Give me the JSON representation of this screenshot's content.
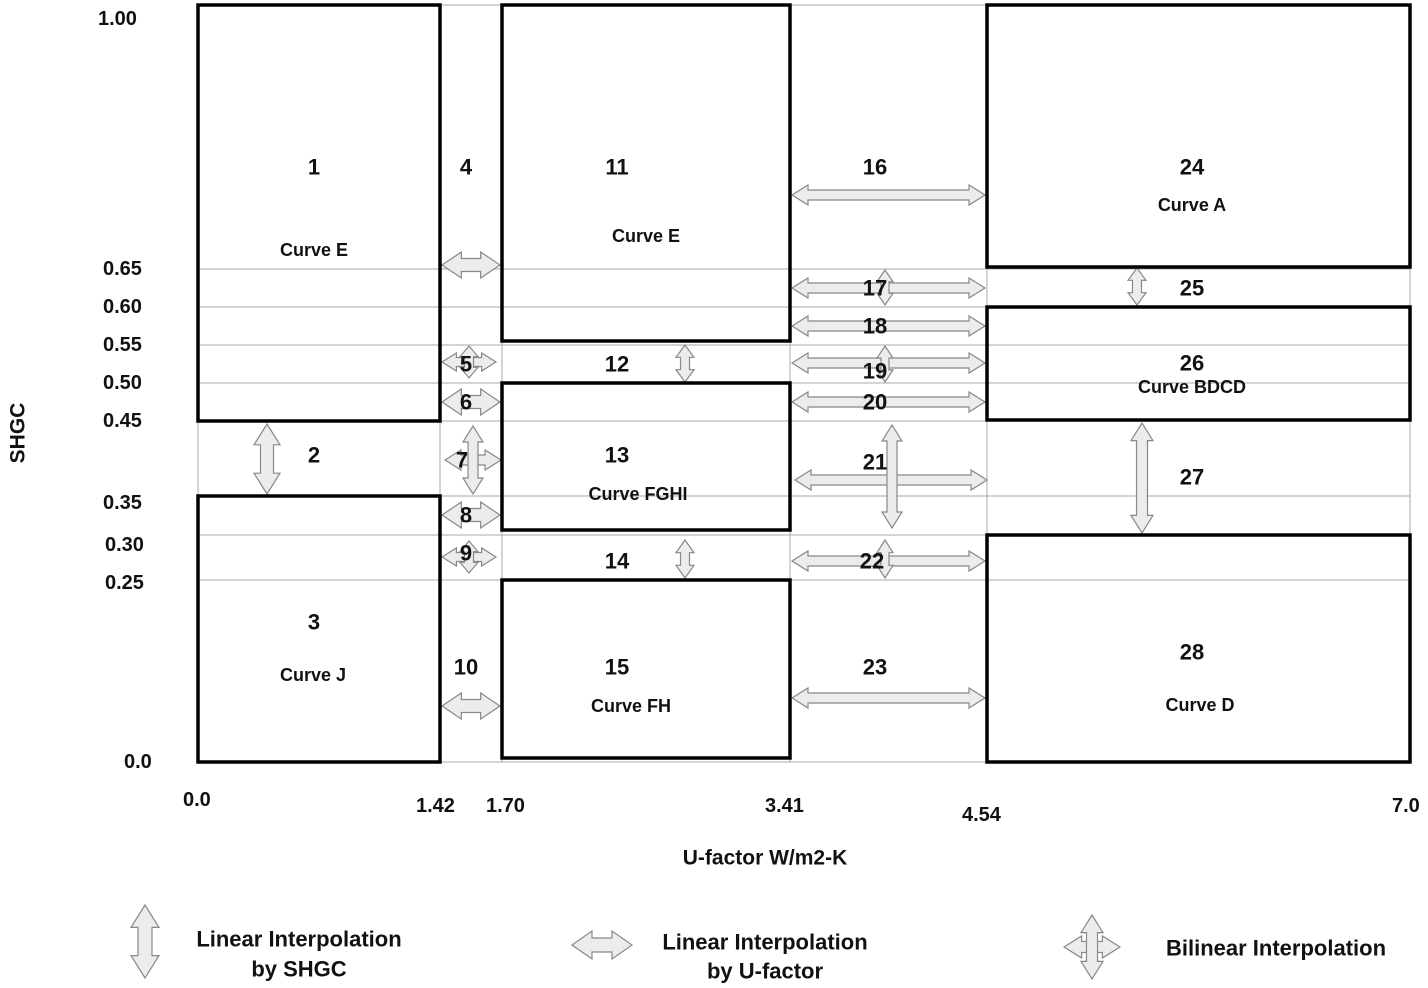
{
  "y_axis": {
    "title": "SHGC",
    "ticks": [
      "1.00",
      "0.65",
      "0.60",
      "0.55",
      "0.50",
      "0.45",
      "0.35",
      "0.30",
      "0.25",
      "0.0"
    ]
  },
  "x_axis": {
    "title": "U-factor W/m2-K",
    "ticks": [
      "0.0",
      "1.42",
      "1.70",
      "3.41",
      "4.54",
      "7.0"
    ]
  },
  "regions": {
    "r1": {
      "num": "1",
      "curve": "Curve E"
    },
    "r2": {
      "num": "2"
    },
    "r3": {
      "num": "3",
      "curve": "Curve J"
    },
    "r4": {
      "num": "4"
    },
    "r5": {
      "num": "5"
    },
    "r6": {
      "num": "6"
    },
    "r7": {
      "num": "7"
    },
    "r8": {
      "num": "8"
    },
    "r9": {
      "num": "9"
    },
    "r10": {
      "num": "10"
    },
    "r11": {
      "num": "11",
      "curve": "Curve E"
    },
    "r12": {
      "num": "12"
    },
    "r13": {
      "num": "13",
      "curve": "Curve FGHI"
    },
    "r14": {
      "num": "14"
    },
    "r15": {
      "num": "15",
      "curve": "Curve FH"
    },
    "r16": {
      "num": "16"
    },
    "r17": {
      "num": "17"
    },
    "r18": {
      "num": "18"
    },
    "r19": {
      "num": "19"
    },
    "r20": {
      "num": "20"
    },
    "r21": {
      "num": "21"
    },
    "r22": {
      "num": "22"
    },
    "r23": {
      "num": "23"
    },
    "r24": {
      "num": "24",
      "curve": "Curve A"
    },
    "r25": {
      "num": "25"
    },
    "r26": {
      "num": "26",
      "curve": "Curve BDCD"
    },
    "r27": {
      "num": "27"
    },
    "r28": {
      "num": "28",
      "curve": "Curve D"
    }
  },
  "legend": {
    "shgc": {
      "line1": "Linear Interpolation",
      "line2": "by SHGC",
      "icon": "vertical-double-arrow"
    },
    "ufactor": {
      "line1": "Linear Interpolation",
      "line2": "by U-factor",
      "icon": "horizontal-double-arrow"
    },
    "bilinear": {
      "line1": "Bilinear Interpolation",
      "icon": "four-way-arrow"
    }
  },
  "colors": {
    "arrow_fill": "#ececec",
    "arrow_stroke": "#888888",
    "box_stroke": "#000000",
    "grid": "#aaaaaa"
  }
}
